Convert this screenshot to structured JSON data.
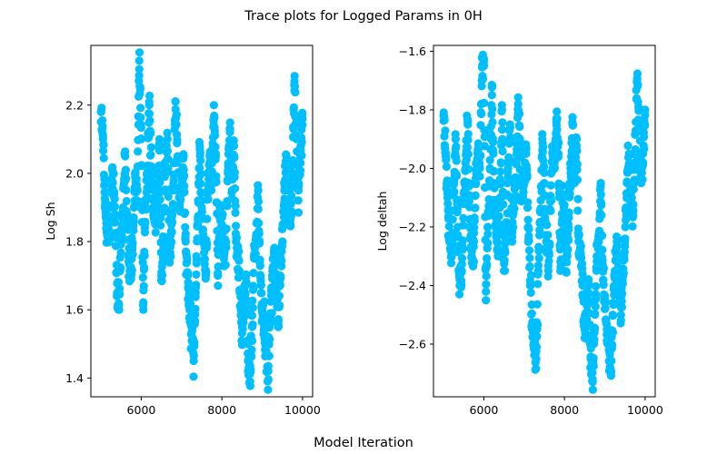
{
  "figure": {
    "suptitle": "Trace plots for Logged Params in 0H",
    "supxlabel": "Model Iteration"
  },
  "chart_data": [
    {
      "type": "scatter",
      "ylabel": "Log Sh",
      "xlabel": "",
      "xlim": [
        4750,
        10250
      ],
      "ylim": [
        1.345,
        2.375
      ],
      "xticks": [
        6000,
        8000,
        10000
      ],
      "xtick_labels": [
        "6000",
        "8000",
        "10000"
      ],
      "yticks": [
        1.4,
        1.6,
        1.8,
        2.0,
        2.2
      ],
      "ytick_labels": [
        "1.4",
        "1.6",
        "1.8",
        "2.0",
        "2.2"
      ],
      "grid": false,
      "marker_color": "#00bfff",
      "x_range": [
        5000,
        10000
      ],
      "points_per_series": 1000,
      "series": [
        {
          "x": [
            5000,
            5050,
            5100,
            5150,
            5200,
            5250,
            5300,
            5350,
            5400,
            5450,
            5500,
            5550,
            5600,
            5650,
            5700,
            5750,
            5800,
            5850,
            5900,
            5950,
            6000,
            6050,
            6100,
            6150,
            6200,
            6250,
            6300,
            6350,
            6400,
            6450,
            6500,
            6550,
            6600,
            6650,
            6700,
            6750,
            6800,
            6850,
            6900,
            6950,
            7000,
            7050,
            7100,
            7150,
            7200,
            7250,
            7300,
            7350,
            7400,
            7450,
            7500,
            7550,
            7600,
            7650,
            7700,
            7750,
            7800,
            7850,
            7900,
            7950,
            8000,
            8050,
            8100,
            8150,
            8200,
            8250,
            8300,
            8350,
            8400,
            8450,
            8500,
            8550,
            8600,
            8650,
            8700,
            8750,
            8800,
            8850,
            8900,
            8950,
            9000,
            9050,
            9100,
            9150,
            9200,
            9250,
            9300,
            9350,
            9400,
            9450,
            9500,
            9550,
            9600,
            9650,
            9700,
            9750,
            9800,
            9850,
            9900,
            9950,
            10000
          ],
          "y": [
            2.18,
            2.1,
            1.9,
            1.85,
            1.8,
            1.95,
            2.0,
            1.88,
            1.65,
            1.6,
            1.8,
            1.9,
            2.05,
            1.85,
            1.75,
            1.7,
            1.85,
            2.0,
            1.95,
            2.33,
            2.1,
            1.6,
            1.9,
            2.0,
            2.2,
            2.0,
            1.9,
            1.85,
            1.95,
            2.1,
            1.7,
            1.8,
            2.0,
            2.1,
            1.75,
            1.85,
            1.95,
            2.21,
            2.05,
            1.9,
            1.95,
            2.05,
            1.8,
            1.7,
            1.6,
            1.55,
            1.45,
            1.65,
            1.85,
            2.08,
            1.9,
            1.8,
            1.7,
            1.95,
            2.05,
            2.0,
            2.16,
            2.05,
            1.7,
            1.9,
            1.85,
            1.75,
            1.8,
            2.0,
            2.13,
            1.95,
            2.08,
            1.8,
            1.75,
            1.65,
            1.55,
            1.6,
            1.7,
            1.45,
            1.39,
            1.55,
            1.75,
            1.8,
            1.95,
            1.7,
            1.6,
            1.55,
            1.48,
            1.42,
            1.58,
            1.7,
            1.78,
            1.65,
            1.55,
            1.7,
            1.8,
            1.95,
            2.05,
            1.9,
            1.85,
            2.0,
            2.27,
            2.1,
            1.95,
            2.05,
            2.16
          ]
        }
      ]
    },
    {
      "type": "scatter",
      "ylabel": "Log deltah",
      "xlabel": "",
      "xlim": [
        4750,
        10250
      ],
      "ylim": [
        -2.78,
        -1.58
      ],
      "xticks": [
        6000,
        8000,
        10000
      ],
      "xtick_labels": [
        "6000",
        "8000",
        "10000"
      ],
      "yticks": [
        -2.6,
        -2.4,
        -2.2,
        -2.0,
        -1.8,
        -1.6
      ],
      "ytick_labels": [
        "−2.6",
        "−2.4",
        "−2.2",
        "−2.0",
        "−1.8",
        "−1.6"
      ],
      "grid": false,
      "marker_color": "#00bfff",
      "x_range": [
        5000,
        10000
      ],
      "points_per_series": 1000,
      "series": [
        {
          "x": [
            5000,
            5050,
            5100,
            5150,
            5200,
            5250,
            5300,
            5350,
            5400,
            5450,
            5500,
            5550,
            5600,
            5650,
            5700,
            5750,
            5800,
            5850,
            5900,
            5950,
            6000,
            6050,
            6100,
            6150,
            6200,
            6250,
            6300,
            6350,
            6400,
            6450,
            6500,
            6550,
            6600,
            6650,
            6700,
            6750,
            6800,
            6850,
            6900,
            6950,
            7000,
            7050,
            7100,
            7150,
            7200,
            7250,
            7300,
            7350,
            7400,
            7450,
            7500,
            7550,
            7600,
            7650,
            7700,
            7750,
            7800,
            7850,
            7900,
            7950,
            8000,
            8050,
            8100,
            8150,
            8200,
            8250,
            8300,
            8350,
            8400,
            8450,
            8500,
            8550,
            8600,
            8650,
            8700,
            8750,
            8800,
            8850,
            8900,
            8950,
            9000,
            9050,
            9100,
            9150,
            9200,
            9250,
            9300,
            9350,
            9400,
            9450,
            9500,
            9550,
            9600,
            9650,
            9700,
            9750,
            9800,
            9850,
            9900,
            9950,
            10000
          ],
          "y": [
            -1.82,
            -1.95,
            -2.1,
            -2.25,
            -2.3,
            -2.05,
            -1.9,
            -2.2,
            -2.4,
            -2.35,
            -2.1,
            -2.0,
            -1.85,
            -2.2,
            -2.3,
            -2.25,
            -2.05,
            -1.95,
            -2.0,
            -1.7,
            -1.65,
            -2.45,
            -2.2,
            -2.0,
            -1.75,
            -2.05,
            -2.2,
            -2.3,
            -2.1,
            -1.8,
            -2.35,
            -2.25,
            -2.0,
            -1.85,
            -2.25,
            -2.1,
            -2.05,
            -1.78,
            -1.95,
            -2.1,
            -2.05,
            -1.95,
            -2.2,
            -2.4,
            -2.55,
            -2.6,
            -2.65,
            -2.35,
            -2.15,
            -1.9,
            -2.05,
            -2.25,
            -2.35,
            -2.1,
            -1.95,
            -2.0,
            -1.83,
            -1.95,
            -2.35,
            -2.1,
            -2.15,
            -2.3,
            -2.2,
            -2.0,
            -1.85,
            -2.05,
            -1.9,
            -2.25,
            -2.3,
            -2.4,
            -2.55,
            -2.5,
            -2.4,
            -2.65,
            -2.72,
            -2.55,
            -2.3,
            -2.25,
            -2.05,
            -2.35,
            -2.45,
            -2.55,
            -2.62,
            -2.69,
            -2.5,
            -2.35,
            -2.25,
            -2.4,
            -2.5,
            -2.35,
            -2.25,
            -2.05,
            -1.95,
            -2.1,
            -2.15,
            -1.95,
            -1.7,
            -1.85,
            -2.05,
            -1.95,
            -1.8
          ]
        }
      ]
    }
  ]
}
